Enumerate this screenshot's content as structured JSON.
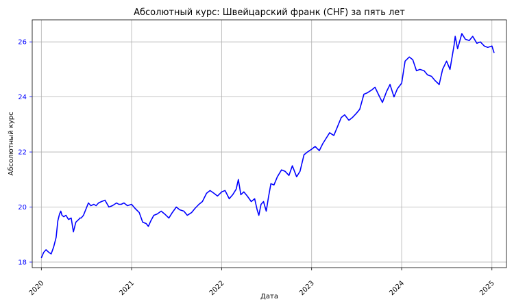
{
  "chart_data": {
    "type": "line",
    "title": "Абсолютный курс: Швейцарский франк (CHF) за пять лет",
    "xlabel": "Дата",
    "ylabel": "Абсолютный курс",
    "x_ticks": [
      "2020",
      "2021",
      "2022",
      "2023",
      "2024",
      "2025"
    ],
    "y_ticks": [
      18,
      20,
      22,
      24,
      26
    ],
    "xlim": [
      "2019-11-25",
      "2025-03-01"
    ],
    "ylim": [
      17.8,
      26.8
    ],
    "grid": true,
    "colors": {
      "line": "#0000ff",
      "ylabel": "#0000ff",
      "grid": "#b0b0b0"
    },
    "series": [
      {
        "name": "",
        "x": [
          "2020-01-01",
          "2020-01-10",
          "2020-01-20",
          "2020-02-01",
          "2020-02-10",
          "2020-02-20",
          "2020-03-01",
          "2020-03-08",
          "2020-03-15",
          "2020-03-20",
          "2020-03-25",
          "2020-04-01",
          "2020-04-10",
          "2020-04-20",
          "2020-05-01",
          "2020-05-10",
          "2020-05-20",
          "2020-06-01",
          "2020-06-05",
          "2020-06-10",
          "2020-06-20",
          "2020-07-01",
          "2020-07-10",
          "2020-07-20",
          "2020-08-01",
          "2020-08-10",
          "2020-08-20",
          "2020-09-01",
          "2020-09-15",
          "2020-10-01",
          "2020-10-15",
          "2020-11-01",
          "2020-11-10",
          "2020-11-20",
          "2020-12-01",
          "2020-12-15",
          "2021-01-01",
          "2021-01-15",
          "2021-02-01",
          "2021-02-15",
          "2021-03-01",
          "2021-03-10",
          "2021-03-20",
          "2021-04-01",
          "2021-04-15",
          "2021-05-01",
          "2021-05-15",
          "2021-06-01",
          "2021-06-15",
          "2021-07-01",
          "2021-07-15",
          "2021-08-01",
          "2021-08-15",
          "2021-09-01",
          "2021-09-15",
          "2021-10-01",
          "2021-10-15",
          "2021-11-01",
          "2021-11-15",
          "2021-12-01",
          "2021-12-15",
          "2022-01-01",
          "2022-01-15",
          "2022-02-01",
          "2022-02-15",
          "2022-03-01",
          "2022-03-10",
          "2022-03-20",
          "2022-04-01",
          "2022-04-15",
          "2022-05-01",
          "2022-05-15",
          "2022-05-25",
          "2022-06-01",
          "2022-06-10",
          "2022-06-20",
          "2022-07-01",
          "2022-07-10",
          "2022-07-20",
          "2022-08-01",
          "2022-08-15",
          "2022-09-01",
          "2022-09-15",
          "2022-10-01",
          "2022-10-15",
          "2022-11-01",
          "2022-11-15",
          "2022-12-01",
          "2022-12-15",
          "2023-01-01",
          "2023-01-15",
          "2023-02-01",
          "2023-02-15",
          "2023-03-01",
          "2023-03-15",
          "2023-04-01",
          "2023-04-15",
          "2023-05-01",
          "2023-05-15",
          "2023-06-01",
          "2023-06-15",
          "2023-07-01",
          "2023-07-15",
          "2023-08-01",
          "2023-08-15",
          "2023-09-01",
          "2023-09-15",
          "2023-10-01",
          "2023-10-15",
          "2023-11-01",
          "2023-11-15",
          "2023-12-01",
          "2023-12-15",
          "2024-01-01",
          "2024-01-15",
          "2024-02-01",
          "2024-02-15",
          "2024-03-01",
          "2024-03-15",
          "2024-04-01",
          "2024-04-15",
          "2024-05-01",
          "2024-05-15",
          "2024-06-01",
          "2024-06-15",
          "2024-07-01",
          "2024-07-15",
          "2024-08-01",
          "2024-08-05",
          "2024-08-15",
          "2024-09-01",
          "2024-09-15",
          "2024-10-01",
          "2024-10-15",
          "2024-11-01",
          "2024-11-15",
          "2024-12-01",
          "2024-12-15",
          "2025-01-01",
          "2025-01-10"
        ],
        "values": [
          18.15,
          18.35,
          18.45,
          18.35,
          18.3,
          18.55,
          18.9,
          19.5,
          19.75,
          19.85,
          19.7,
          19.65,
          19.7,
          19.55,
          19.6,
          19.1,
          19.45,
          19.55,
          19.6,
          19.6,
          19.7,
          19.95,
          20.15,
          20.05,
          20.1,
          20.05,
          20.15,
          20.2,
          20.25,
          20.0,
          20.05,
          20.15,
          20.1,
          20.1,
          20.15,
          20.05,
          20.1,
          19.95,
          19.8,
          19.45,
          19.4,
          19.3,
          19.5,
          19.7,
          19.75,
          19.85,
          19.75,
          19.6,
          19.8,
          20.0,
          19.9,
          19.85,
          19.7,
          19.8,
          19.95,
          20.1,
          20.2,
          20.5,
          20.6,
          20.5,
          20.4,
          20.55,
          20.6,
          20.3,
          20.45,
          20.65,
          21.0,
          20.45,
          20.55,
          20.4,
          20.2,
          20.3,
          19.9,
          19.7,
          20.1,
          20.2,
          19.85,
          20.35,
          20.85,
          20.8,
          21.1,
          21.35,
          21.3,
          21.15,
          21.5,
          21.1,
          21.3,
          21.9,
          22.0,
          22.1,
          22.2,
          22.05,
          22.3,
          22.5,
          22.7,
          22.6,
          22.9,
          23.25,
          23.35,
          23.15,
          23.25,
          23.4,
          23.55,
          24.1,
          24.15,
          24.25,
          24.35,
          24.05,
          23.8,
          24.2,
          24.45,
          24.0,
          24.3,
          24.5,
          25.3,
          25.45,
          25.35,
          24.95,
          25.0,
          24.95,
          24.8,
          24.75,
          24.6,
          24.45,
          25.0,
          25.3,
          25.0,
          25.9,
          26.2,
          25.75,
          26.3,
          26.1,
          26.05,
          26.2,
          25.95,
          26.0,
          25.85,
          25.8,
          25.85,
          25.6
        ]
      }
    ]
  }
}
